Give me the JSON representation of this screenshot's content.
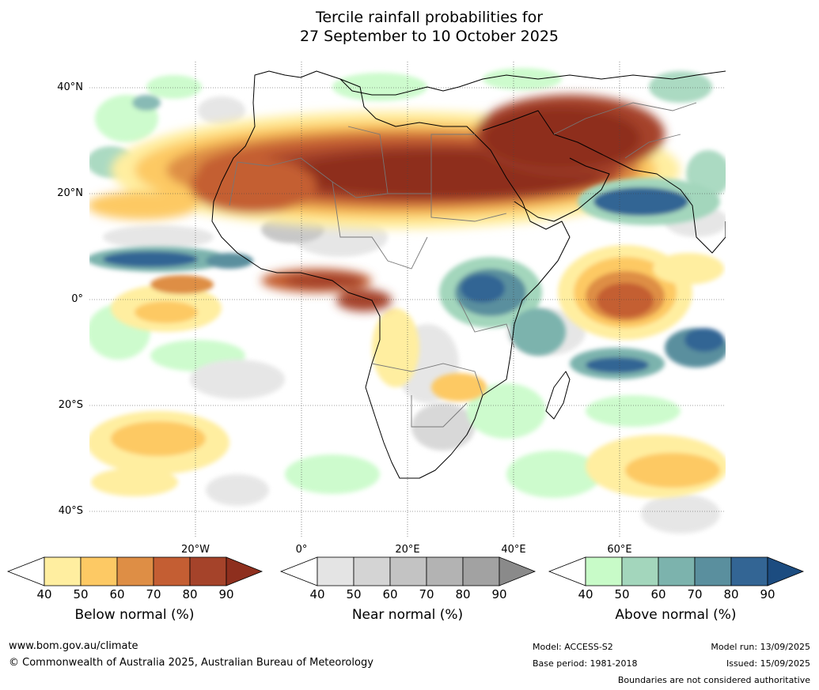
{
  "title": {
    "line1": "Tercile rainfall probabilities for",
    "line2": "27 September to 10 October 2025"
  },
  "map": {
    "lat_labels": [
      "40°N",
      "20°N",
      "0°",
      "20°S",
      "40°S"
    ],
    "lon_labels": [
      "20°W",
      "0°",
      "20°E",
      "40°E",
      "60°E"
    ]
  },
  "colorbars": [
    {
      "id": "below",
      "label": "Below normal (%)",
      "ticks": [
        "40",
        "50",
        "60",
        "70",
        "80",
        "90"
      ],
      "colors": [
        "#ffeea0",
        "#fdc964",
        "#de8e45",
        "#c45e33",
        "#a5432a",
        "#8e2f1e"
      ]
    },
    {
      "id": "near",
      "label": "Near normal (%)",
      "ticks": [
        "40",
        "50",
        "60",
        "70",
        "80",
        "90"
      ],
      "colors": [
        "#e4e4e4",
        "#d4d4d4",
        "#c3c3c3",
        "#b3b3b3",
        "#a2a2a2",
        "#8a8a8a"
      ]
    },
    {
      "id": "above",
      "label": "Above normal (%)",
      "ticks": [
        "40",
        "50",
        "60",
        "70",
        "80",
        "90"
      ],
      "colors": [
        "#c8fbc8",
        "#a3d6bc",
        "#7cb3ad",
        "#5a8f9e",
        "#336594",
        "#1c4c80"
      ]
    }
  ],
  "footer": {
    "website": "www.bom.gov.au/climate",
    "copyright": "© Commonwealth of Australia 2025, Australian Bureau of Meteorology",
    "model": "Model: ACCESS-S2",
    "base_period": "Base period: 1981-2018",
    "model_run": "Model run: 13/09/2025",
    "issued": "Issued: 15/09/2025",
    "disclaimer": "Boundaries are not considered authoritative"
  }
}
